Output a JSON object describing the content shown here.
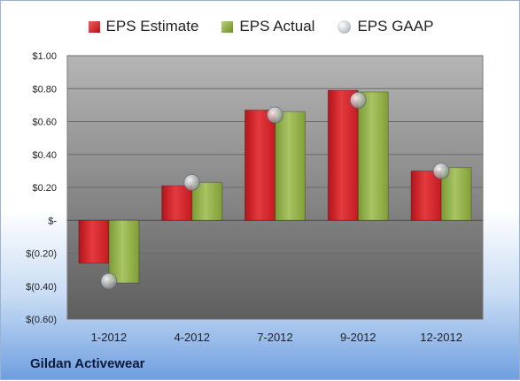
{
  "company": "Gildan Activewear",
  "legend": {
    "estimate": "EPS Estimate",
    "actual": "EPS Actual",
    "gaap": "EPS GAAP"
  },
  "colors": {
    "estimate": "#d42a2e",
    "actual": "#94b24a",
    "gaap": "#b8bdc4",
    "plot_background": "#8e8e8e"
  },
  "chart_data": {
    "type": "bar",
    "categories": [
      "1-2012",
      "4-2012",
      "7-2012",
      "9-2012",
      "12-2012"
    ],
    "series": [
      {
        "name": "EPS Estimate",
        "values": [
          -0.26,
          0.21,
          0.67,
          0.79,
          0.3
        ]
      },
      {
        "name": "EPS Actual",
        "values": [
          -0.38,
          0.23,
          0.66,
          0.78,
          0.32
        ]
      },
      {
        "name": "EPS GAAP",
        "marker": "bubble",
        "values": [
          -0.37,
          0.23,
          0.64,
          0.73,
          0.3
        ]
      }
    ],
    "ylim": [
      -0.6,
      1.0
    ],
    "yticks": [
      1.0,
      0.8,
      0.6,
      0.4,
      0.2,
      0,
      -0.2,
      -0.4,
      -0.6
    ],
    "ytick_labels": [
      "$1.00",
      "$0.80",
      "$0.60",
      "$0.40",
      "$0.20",
      "$-",
      "$(0.20)",
      "$(0.40)",
      "$(0.60)"
    ],
    "legend_position": "top",
    "grid": true
  }
}
